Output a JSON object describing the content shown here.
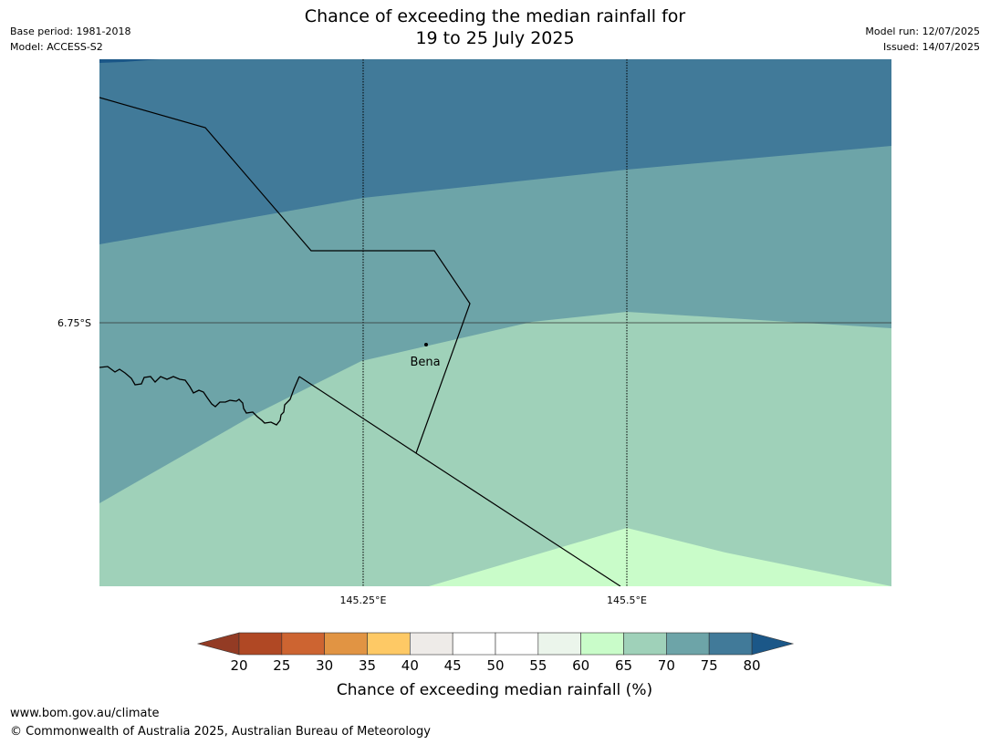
{
  "header": {
    "title_line1": "Chance of exceeding the median rainfall for",
    "title_line2": "19 to 25 July 2025",
    "base_period": "Base period: 1981-2018",
    "model": "Model: ACCESS-S2",
    "model_run": "Model run: 12/07/2025",
    "issued": "Issued: 14/07/2025"
  },
  "map": {
    "lat_labels": [
      "6.75°S"
    ],
    "lon_labels": [
      "145.25°E",
      "145.5°E"
    ],
    "places": [
      {
        "name": "Bena"
      }
    ],
    "zone_colors": {
      "75-80": "#417a99",
      "70-75": "#6da4a8",
      "65-70": "#9fd1b9",
      "60-65": "#c9fcc9",
      "80plus": "#1b5788"
    }
  },
  "legend": {
    "title": "Chance of exceeding median rainfall (%)",
    "ticks": [
      "20",
      "25",
      "30",
      "35",
      "40",
      "45",
      "50",
      "55",
      "60",
      "65",
      "70",
      "75",
      "80"
    ],
    "colors": [
      "#b04824",
      "#cd6431",
      "#e19443",
      "#fec965",
      "#eeebe8",
      "#ffffff",
      "#ffffff",
      "#ebf5eb",
      "#c9fcc9",
      "#9fd1b9",
      "#6da4a8",
      "#417a99"
    ],
    "low_extend_color": "#933b24",
    "high_extend_color": "#1b5788"
  },
  "footer": {
    "url": "www.bom.gov.au/climate",
    "copyright": "© Commonwealth of Australia 2025, Australian Bureau of Meteorology"
  }
}
